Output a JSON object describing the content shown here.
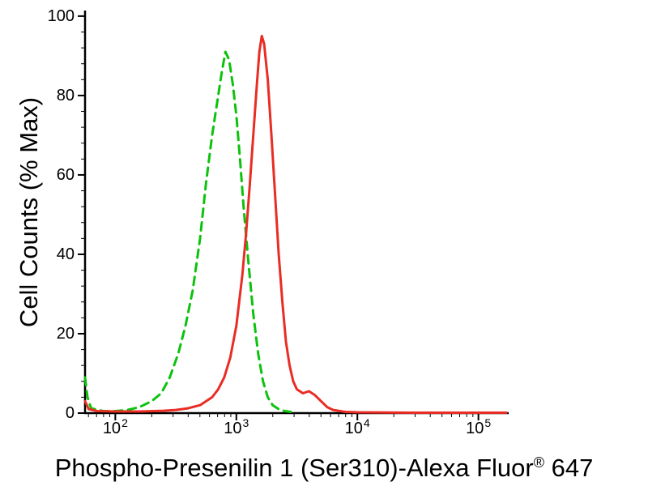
{
  "chart_data": {
    "type": "line",
    "title": "",
    "ylabel": "Cell Counts (% Max)",
    "xlabel_main": "Phospho-Presenilin 1 (Ser310)-Alexa Fluor",
    "xlabel_sup": "®",
    "xlabel_suffix": " 647",
    "x_scale": "log10",
    "x_domain_log": [
      1.75,
      5.23
    ],
    "x_tick_base": "10",
    "x_tick_exponents": [
      "2",
      "3",
      "4",
      "5"
    ],
    "y_ticks": [
      0,
      20,
      40,
      60,
      80,
      100
    ],
    "ylim": [
      0,
      101
    ],
    "grid": false,
    "legend": "none",
    "axis_color": "#000000",
    "series": [
      {
        "name": "green-dashed",
        "color": "#0cc20c",
        "dash": "10,7",
        "width": 3,
        "points_logx_y": [
          [
            1.75,
            9
          ],
          [
            1.77,
            4
          ],
          [
            1.8,
            1.2
          ],
          [
            1.9,
            0.5
          ],
          [
            2.0,
            0.5
          ],
          [
            2.1,
            0.8
          ],
          [
            2.2,
            1.5
          ],
          [
            2.3,
            3
          ],
          [
            2.38,
            5
          ],
          [
            2.45,
            9
          ],
          [
            2.52,
            15
          ],
          [
            2.58,
            22
          ],
          [
            2.64,
            31
          ],
          [
            2.7,
            44
          ],
          [
            2.75,
            58
          ],
          [
            2.8,
            70
          ],
          [
            2.85,
            80
          ],
          [
            2.88,
            86
          ],
          [
            2.91,
            91
          ],
          [
            2.94,
            89
          ],
          [
            2.97,
            83
          ],
          [
            3.0,
            75
          ],
          [
            3.03,
            64
          ],
          [
            3.06,
            52
          ],
          [
            3.1,
            38
          ],
          [
            3.14,
            25
          ],
          [
            3.18,
            15
          ],
          [
            3.22,
            8
          ],
          [
            3.26,
            4
          ],
          [
            3.3,
            2
          ],
          [
            3.35,
            1
          ],
          [
            3.4,
            0.5
          ],
          [
            3.45,
            0.3
          ]
        ]
      },
      {
        "name": "red-solid",
        "color": "#e92c24",
        "dash": null,
        "width": 3,
        "points_logx_y": [
          [
            1.75,
            3
          ],
          [
            1.78,
            1
          ],
          [
            1.85,
            0.5
          ],
          [
            2.0,
            0.4
          ],
          [
            2.2,
            0.4
          ],
          [
            2.4,
            0.6
          ],
          [
            2.5,
            0.8
          ],
          [
            2.6,
            1.2
          ],
          [
            2.7,
            2
          ],
          [
            2.8,
            4
          ],
          [
            2.85,
            6
          ],
          [
            2.9,
            9
          ],
          [
            2.95,
            14
          ],
          [
            3.0,
            22
          ],
          [
            3.05,
            35
          ],
          [
            3.08,
            45
          ],
          [
            3.11,
            57
          ],
          [
            3.14,
            70
          ],
          [
            3.17,
            83
          ],
          [
            3.19,
            91
          ],
          [
            3.21,
            95
          ],
          [
            3.23,
            93
          ],
          [
            3.26,
            84
          ],
          [
            3.29,
            70
          ],
          [
            3.32,
            55
          ],
          [
            3.35,
            40
          ],
          [
            3.38,
            28
          ],
          [
            3.41,
            18
          ],
          [
            3.44,
            12
          ],
          [
            3.47,
            8
          ],
          [
            3.5,
            6
          ],
          [
            3.55,
            5
          ],
          [
            3.6,
            5.5
          ],
          [
            3.65,
            4.5
          ],
          [
            3.7,
            3
          ],
          [
            3.75,
            1.5
          ],
          [
            3.8,
            0.8
          ],
          [
            3.9,
            0.3
          ],
          [
            4.0,
            0.2
          ],
          [
            4.5,
            0.1
          ],
          [
            5.0,
            0.1
          ],
          [
            5.23,
            0.1
          ]
        ]
      }
    ]
  }
}
